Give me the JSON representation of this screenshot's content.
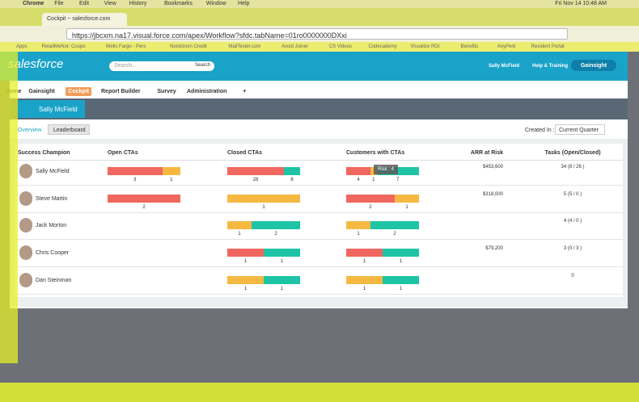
{
  "menubar": {
    "items": [
      "Chrome",
      "File",
      "Edit",
      "View",
      "History",
      "Bookmarks",
      "Window",
      "Help"
    ],
    "clock": "Fri Nov 14  10:48 AM"
  },
  "browser": {
    "tab": "Cockpit ~ salesforce.com",
    "url": "https://jbcxm.na17.visual.force.com/apex/Workflow?sfdc.tabName=01ro0000000DXxi",
    "bookmarks": [
      "Apps",
      "RetailMeNot: Coupo",
      "Wells Fargo - Pers",
      "Nordstrom Credit",
      "MailTester.com",
      "Avoid Joiner",
      "CS Videos",
      "Codecademy",
      "Visualize ROI",
      "Benefits",
      "AnyPerk",
      "Resident Portal"
    ]
  },
  "header": {
    "logo": "salesforce",
    "search_placeholder": "Search...",
    "search_button": "Search",
    "user": "Sally McField",
    "help": "Help & Training",
    "app": "Gainsight"
  },
  "tabs": [
    "Home",
    "Gainsight",
    "Cockpit",
    "Report Builder",
    "Survey",
    "Administration",
    "+"
  ],
  "cockpit": {
    "user": "Sally McField",
    "subtabs": [
      "Overview",
      "Leaderboard"
    ],
    "filter_label": "Created In :",
    "filter_value": "Current Quarter"
  },
  "colors": {
    "red": "#f0675f",
    "orange": "#f5b942",
    "teal": "#1ec4a5"
  },
  "table": {
    "columns": [
      "Success Champion",
      "Open CTAs",
      "Closed CTAs",
      "Customers with CTAs",
      "ARR at Risk",
      "Tasks (Open/Closed)"
    ],
    "rows": [
      {
        "name": "Sally McField",
        "open": [
          {
            "color": "red",
            "value": 3
          },
          {
            "color": "orange",
            "value": 1
          }
        ],
        "closed": [
          {
            "color": "red",
            "value": 28
          },
          {
            "color": "teal",
            "value": 8
          }
        ],
        "customers": [
          {
            "color": "red",
            "value": 4
          },
          {
            "color": "orange",
            "value": 1
          },
          {
            "color": "teal",
            "value": 7
          }
        ],
        "arr": "$453,600",
        "tasks": "34 (8 / 26 )"
      },
      {
        "name": "Steve Martin",
        "open": [
          {
            "color": "red",
            "value": 2
          }
        ],
        "closed": [
          {
            "color": "orange",
            "value": 1
          }
        ],
        "customers": [
          {
            "color": "red",
            "value": 2
          },
          {
            "color": "orange",
            "value": 1
          }
        ],
        "arr": "$318,000",
        "tasks": "5 (5 / 0 )"
      },
      {
        "name": "Jack Morton",
        "open": [],
        "closed": [
          {
            "color": "orange",
            "value": 1
          },
          {
            "color": "teal",
            "value": 2
          }
        ],
        "customers": [
          {
            "color": "orange",
            "value": 1
          },
          {
            "color": "teal",
            "value": 2
          }
        ],
        "arr": null,
        "tasks": "4 (4 / 0 )"
      },
      {
        "name": "Chris Cooper",
        "open": [],
        "closed": [
          {
            "color": "red",
            "value": 1
          },
          {
            "color": "teal",
            "value": 1
          }
        ],
        "customers": [
          {
            "color": "red",
            "value": 1
          },
          {
            "color": "teal",
            "value": 1
          }
        ],
        "arr": "$79,200",
        "tasks": "3 (0 / 3 )"
      },
      {
        "name": "Dan Steinman",
        "open": [],
        "closed": [
          {
            "color": "orange",
            "value": 1
          },
          {
            "color": "teal",
            "value": 1
          }
        ],
        "customers": [
          {
            "color": "orange",
            "value": 1
          },
          {
            "color": "teal",
            "value": 1
          }
        ],
        "arr": null,
        "tasks": "0"
      }
    ]
  },
  "tooltip": "Risk : 4"
}
